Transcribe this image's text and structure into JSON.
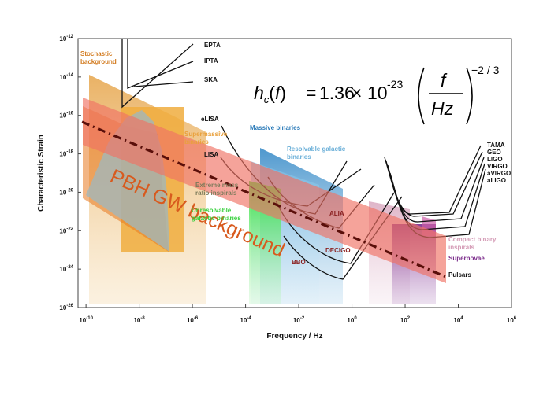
{
  "chart_data": {
    "type": "area",
    "xlabel": "Frequency / Hz",
    "ylabel": "Characteristic Strain",
    "xscale": "log",
    "yscale": "log",
    "xlim_exp": [
      -10.3,
      6
    ],
    "ylim_exp": [
      -26,
      -12
    ],
    "x_ticks": [
      {
        "base": "10",
        "exp": "-10"
      },
      {
        "base": "10",
        "exp": "-8"
      },
      {
        "base": "10",
        "exp": "-6"
      },
      {
        "base": "10",
        "exp": "-4"
      },
      {
        "base": "10",
        "exp": "-2"
      },
      {
        "base": "10",
        "exp": "0"
      },
      {
        "base": "10",
        "exp": "2"
      },
      {
        "base": "10",
        "exp": "4"
      },
      {
        "base": "10",
        "exp": "6"
      }
    ],
    "y_ticks": [
      {
        "base": "10",
        "exp": "-12"
      },
      {
        "base": "10",
        "exp": "-14"
      },
      {
        "base": "10",
        "exp": "-16"
      },
      {
        "base": "10",
        "exp": "-18"
      },
      {
        "base": "10",
        "exp": "-20"
      },
      {
        "base": "10",
        "exp": "-22"
      },
      {
        "base": "10",
        "exp": "-24"
      },
      {
        "base": "10",
        "exp": "-26"
      }
    ],
    "sources": [
      {
        "name": "Stochastic background",
        "color": "#e9a03b"
      },
      {
        "name": "Supermassive binaries",
        "color": "#f0ad3e"
      },
      {
        "name": "Massive binaries",
        "color": "#2a7ab8"
      },
      {
        "name": "Resolvable galactic binaries",
        "color": "#6aafd8"
      },
      {
        "name": "Extreme mass ratio inspirals",
        "color": "#7b7a5a"
      },
      {
        "name": "Unresolvable galactic binaries",
        "color": "#36d03c"
      },
      {
        "name": "Compact binary inspirals",
        "color": "#d49ab5"
      },
      {
        "name": "Supernovae",
        "color": "#7a2a8a"
      }
    ],
    "detectors": [
      "EPTA",
      "IPTA",
      "SKA",
      "eLISA",
      "LISA",
      "ALIA",
      "DECIGO",
      "BBO",
      "TAMA",
      "GEO",
      "LIGO",
      "VIRGO",
      "aVIRGO",
      "aLIGO",
      "Pulsars"
    ],
    "pbh_background": {
      "label": "PBH GW background",
      "x_exp": [
        -10,
        4
      ],
      "y_exp": [
        -16.4,
        -24.6
      ]
    },
    "formula": {
      "lhs": "h_c(f)",
      "coefficient": "1.36",
      "times": "×",
      "mantissa_exp": "-23",
      "numerator": "f",
      "denominator": "Hz",
      "power": "−2 / 3"
    }
  }
}
